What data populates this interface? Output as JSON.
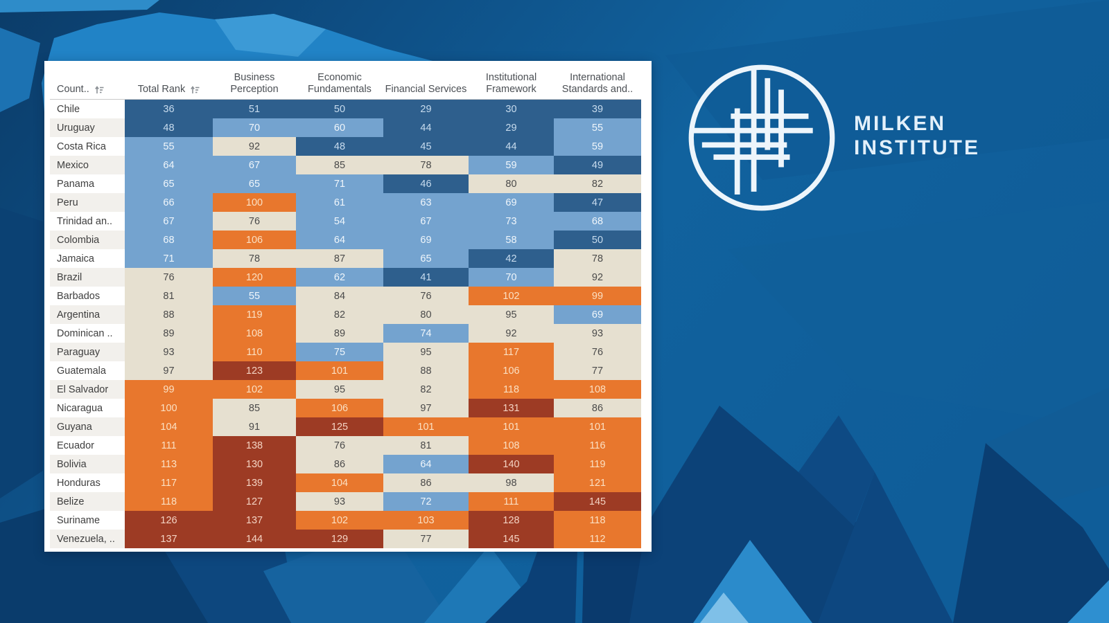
{
  "brand": {
    "line1": "MILKEN",
    "line2": "INSTITUTE"
  },
  "colors": {
    "brand_background": "#0e5390",
    "panel_background": "#ffffff",
    "logo_white": "#edf5fb"
  },
  "tones": {
    "dark-blue": {
      "bg": "#2e5f8d",
      "text": "#c8dcee"
    },
    "light-blue": {
      "bg": "#74a3cf",
      "text": "#f0f6fb"
    },
    "beige": {
      "bg": "#e6e0d0",
      "text": "#4a4a4a"
    },
    "orange": {
      "bg": "#e8772d",
      "text": "#fbe0c3"
    },
    "dark-red": {
      "bg": "#9d3b24",
      "text": "#f4d3c3"
    }
  },
  "table": {
    "columns": [
      {
        "label": "Count..",
        "sort_icon": true
      },
      {
        "label": "Total Rank",
        "sort_icon": true
      },
      {
        "label": "Business Perception",
        "sort_icon": false
      },
      {
        "label": "Economic Fundamentals",
        "sort_icon": false
      },
      {
        "label": "Financial Services",
        "sort_icon": false
      },
      {
        "label": "Institutional Framework",
        "sort_icon": false
      },
      {
        "label": "International Standards and..",
        "sort_icon": false
      }
    ],
    "rows": [
      {
        "country": "Chile",
        "cells": [
          {
            "value": 36,
            "tone": "dark-blue"
          },
          {
            "value": 51,
            "tone": "dark-blue"
          },
          {
            "value": 50,
            "tone": "dark-blue"
          },
          {
            "value": 29,
            "tone": "dark-blue"
          },
          {
            "value": 30,
            "tone": "dark-blue"
          },
          {
            "value": 39,
            "tone": "dark-blue"
          }
        ]
      },
      {
        "country": "Uruguay",
        "cells": [
          {
            "value": 48,
            "tone": "dark-blue"
          },
          {
            "value": 70,
            "tone": "light-blue"
          },
          {
            "value": 60,
            "tone": "light-blue"
          },
          {
            "value": 44,
            "tone": "dark-blue"
          },
          {
            "value": 29,
            "tone": "dark-blue"
          },
          {
            "value": 55,
            "tone": "light-blue"
          }
        ]
      },
      {
        "country": "Costa Rica",
        "cells": [
          {
            "value": 55,
            "tone": "light-blue"
          },
          {
            "value": 92,
            "tone": "beige"
          },
          {
            "value": 48,
            "tone": "dark-blue"
          },
          {
            "value": 45,
            "tone": "dark-blue"
          },
          {
            "value": 44,
            "tone": "dark-blue"
          },
          {
            "value": 59,
            "tone": "light-blue"
          }
        ]
      },
      {
        "country": "Mexico",
        "cells": [
          {
            "value": 64,
            "tone": "light-blue"
          },
          {
            "value": 67,
            "tone": "light-blue"
          },
          {
            "value": 85,
            "tone": "beige"
          },
          {
            "value": 78,
            "tone": "beige"
          },
          {
            "value": 59,
            "tone": "light-blue"
          },
          {
            "value": 49,
            "tone": "dark-blue"
          }
        ]
      },
      {
        "country": "Panama",
        "cells": [
          {
            "value": 65,
            "tone": "light-blue"
          },
          {
            "value": 65,
            "tone": "light-blue"
          },
          {
            "value": 71,
            "tone": "light-blue"
          },
          {
            "value": 46,
            "tone": "dark-blue"
          },
          {
            "value": 80,
            "tone": "beige"
          },
          {
            "value": 82,
            "tone": "beige"
          }
        ]
      },
      {
        "country": "Peru",
        "cells": [
          {
            "value": 66,
            "tone": "light-blue"
          },
          {
            "value": 100,
            "tone": "orange"
          },
          {
            "value": 61,
            "tone": "light-blue"
          },
          {
            "value": 63,
            "tone": "light-blue"
          },
          {
            "value": 69,
            "tone": "light-blue"
          },
          {
            "value": 47,
            "tone": "dark-blue"
          }
        ]
      },
      {
        "country": "Trinidad an..",
        "cells": [
          {
            "value": 67,
            "tone": "light-blue"
          },
          {
            "value": 76,
            "tone": "beige"
          },
          {
            "value": 54,
            "tone": "light-blue"
          },
          {
            "value": 67,
            "tone": "light-blue"
          },
          {
            "value": 73,
            "tone": "light-blue"
          },
          {
            "value": 68,
            "tone": "light-blue"
          }
        ]
      },
      {
        "country": "Colombia",
        "cells": [
          {
            "value": 68,
            "tone": "light-blue"
          },
          {
            "value": 106,
            "tone": "orange"
          },
          {
            "value": 64,
            "tone": "light-blue"
          },
          {
            "value": 69,
            "tone": "light-blue"
          },
          {
            "value": 58,
            "tone": "light-blue"
          },
          {
            "value": 50,
            "tone": "dark-blue"
          }
        ]
      },
      {
        "country": "Jamaica",
        "cells": [
          {
            "value": 71,
            "tone": "light-blue"
          },
          {
            "value": 78,
            "tone": "beige"
          },
          {
            "value": 87,
            "tone": "beige"
          },
          {
            "value": 65,
            "tone": "light-blue"
          },
          {
            "value": 42,
            "tone": "dark-blue"
          },
          {
            "value": 78,
            "tone": "beige"
          }
        ]
      },
      {
        "country": "Brazil",
        "cells": [
          {
            "value": 76,
            "tone": "beige"
          },
          {
            "value": 120,
            "tone": "orange"
          },
          {
            "value": 62,
            "tone": "light-blue"
          },
          {
            "value": 41,
            "tone": "dark-blue"
          },
          {
            "value": 70,
            "tone": "light-blue"
          },
          {
            "value": 92,
            "tone": "beige"
          }
        ]
      },
      {
        "country": "Barbados",
        "cells": [
          {
            "value": 81,
            "tone": "beige"
          },
          {
            "value": 55,
            "tone": "light-blue"
          },
          {
            "value": 84,
            "tone": "beige"
          },
          {
            "value": 76,
            "tone": "beige"
          },
          {
            "value": 102,
            "tone": "orange"
          },
          {
            "value": 99,
            "tone": "orange"
          }
        ]
      },
      {
        "country": "Argentina",
        "cells": [
          {
            "value": 88,
            "tone": "beige"
          },
          {
            "value": 119,
            "tone": "orange"
          },
          {
            "value": 82,
            "tone": "beige"
          },
          {
            "value": 80,
            "tone": "beige"
          },
          {
            "value": 95,
            "tone": "beige"
          },
          {
            "value": 69,
            "tone": "light-blue"
          }
        ]
      },
      {
        "country": "Dominican ..",
        "cells": [
          {
            "value": 89,
            "tone": "beige"
          },
          {
            "value": 108,
            "tone": "orange"
          },
          {
            "value": 89,
            "tone": "beige"
          },
          {
            "value": 74,
            "tone": "light-blue"
          },
          {
            "value": 92,
            "tone": "beige"
          },
          {
            "value": 93,
            "tone": "beige"
          }
        ]
      },
      {
        "country": "Paraguay",
        "cells": [
          {
            "value": 93,
            "tone": "beige"
          },
          {
            "value": 110,
            "tone": "orange"
          },
          {
            "value": 75,
            "tone": "light-blue"
          },
          {
            "value": 95,
            "tone": "beige"
          },
          {
            "value": 117,
            "tone": "orange"
          },
          {
            "value": 76,
            "tone": "beige"
          }
        ]
      },
      {
        "country": "Guatemala",
        "cells": [
          {
            "value": 97,
            "tone": "beige"
          },
          {
            "value": 123,
            "tone": "dark-red"
          },
          {
            "value": 101,
            "tone": "orange"
          },
          {
            "value": 88,
            "tone": "beige"
          },
          {
            "value": 106,
            "tone": "orange"
          },
          {
            "value": 77,
            "tone": "beige"
          }
        ]
      },
      {
        "country": "El Salvador",
        "cells": [
          {
            "value": 99,
            "tone": "orange"
          },
          {
            "value": 102,
            "tone": "orange"
          },
          {
            "value": 95,
            "tone": "beige"
          },
          {
            "value": 82,
            "tone": "beige"
          },
          {
            "value": 118,
            "tone": "orange"
          },
          {
            "value": 108,
            "tone": "orange"
          }
        ]
      },
      {
        "country": "Nicaragua",
        "cells": [
          {
            "value": 100,
            "tone": "orange"
          },
          {
            "value": 85,
            "tone": "beige"
          },
          {
            "value": 106,
            "tone": "orange"
          },
          {
            "value": 97,
            "tone": "beige"
          },
          {
            "value": 131,
            "tone": "dark-red"
          },
          {
            "value": 86,
            "tone": "beige"
          }
        ]
      },
      {
        "country": "Guyana",
        "cells": [
          {
            "value": 104,
            "tone": "orange"
          },
          {
            "value": 91,
            "tone": "beige"
          },
          {
            "value": 125,
            "tone": "dark-red"
          },
          {
            "value": 101,
            "tone": "orange"
          },
          {
            "value": 101,
            "tone": "orange"
          },
          {
            "value": 101,
            "tone": "orange"
          }
        ]
      },
      {
        "country": "Ecuador",
        "cells": [
          {
            "value": 111,
            "tone": "orange"
          },
          {
            "value": 138,
            "tone": "dark-red"
          },
          {
            "value": 76,
            "tone": "beige"
          },
          {
            "value": 81,
            "tone": "beige"
          },
          {
            "value": 108,
            "tone": "orange"
          },
          {
            "value": 116,
            "tone": "orange"
          }
        ]
      },
      {
        "country": "Bolivia",
        "cells": [
          {
            "value": 113,
            "tone": "orange"
          },
          {
            "value": 130,
            "tone": "dark-red"
          },
          {
            "value": 86,
            "tone": "beige"
          },
          {
            "value": 64,
            "tone": "light-blue"
          },
          {
            "value": 140,
            "tone": "dark-red"
          },
          {
            "value": 119,
            "tone": "orange"
          }
        ]
      },
      {
        "country": "Honduras",
        "cells": [
          {
            "value": 117,
            "tone": "orange"
          },
          {
            "value": 139,
            "tone": "dark-red"
          },
          {
            "value": 104,
            "tone": "orange"
          },
          {
            "value": 86,
            "tone": "beige"
          },
          {
            "value": 98,
            "tone": "beige"
          },
          {
            "value": 121,
            "tone": "orange"
          }
        ]
      },
      {
        "country": "Belize",
        "cells": [
          {
            "value": 118,
            "tone": "orange"
          },
          {
            "value": 127,
            "tone": "dark-red"
          },
          {
            "value": 93,
            "tone": "beige"
          },
          {
            "value": 72,
            "tone": "light-blue"
          },
          {
            "value": 111,
            "tone": "orange"
          },
          {
            "value": 145,
            "tone": "dark-red"
          }
        ]
      },
      {
        "country": "Suriname",
        "cells": [
          {
            "value": 126,
            "tone": "dark-red"
          },
          {
            "value": 137,
            "tone": "dark-red"
          },
          {
            "value": 102,
            "tone": "orange"
          },
          {
            "value": 103,
            "tone": "orange"
          },
          {
            "value": 128,
            "tone": "dark-red"
          },
          {
            "value": 118,
            "tone": "orange"
          }
        ]
      },
      {
        "country": "Venezuela, ..",
        "cells": [
          {
            "value": 137,
            "tone": "dark-red"
          },
          {
            "value": 144,
            "tone": "dark-red"
          },
          {
            "value": 129,
            "tone": "dark-red"
          },
          {
            "value": 77,
            "tone": "beige"
          },
          {
            "value": 145,
            "tone": "dark-red"
          },
          {
            "value": 112,
            "tone": "orange"
          }
        ]
      }
    ]
  },
  "chart_data": {
    "type": "table",
    "title": "",
    "categories": [
      "Chile",
      "Uruguay",
      "Costa Rica",
      "Mexico",
      "Panama",
      "Peru",
      "Trinidad an..",
      "Colombia",
      "Jamaica",
      "Brazil",
      "Barbados",
      "Argentina",
      "Dominican ..",
      "Paraguay",
      "Guatemala",
      "El Salvador",
      "Nicaragua",
      "Guyana",
      "Ecuador",
      "Bolivia",
      "Honduras",
      "Belize",
      "Suriname",
      "Venezuela, .."
    ],
    "series": [
      {
        "name": "Total Rank",
        "values": [
          36,
          48,
          55,
          64,
          65,
          66,
          67,
          68,
          71,
          76,
          81,
          88,
          89,
          93,
          97,
          99,
          100,
          104,
          111,
          113,
          117,
          118,
          126,
          137
        ]
      },
      {
        "name": "Business Perception",
        "values": [
          51,
          70,
          92,
          67,
          65,
          100,
          76,
          106,
          78,
          120,
          55,
          119,
          108,
          110,
          123,
          102,
          85,
          91,
          138,
          130,
          139,
          127,
          137,
          144
        ]
      },
      {
        "name": "Economic Fundamentals",
        "values": [
          50,
          60,
          48,
          85,
          71,
          61,
          54,
          64,
          87,
          62,
          84,
          82,
          89,
          75,
          101,
          95,
          106,
          125,
          76,
          86,
          104,
          93,
          102,
          129
        ]
      },
      {
        "name": "Financial Services",
        "values": [
          29,
          44,
          45,
          78,
          46,
          63,
          67,
          69,
          65,
          41,
          76,
          80,
          74,
          95,
          88,
          82,
          97,
          101,
          81,
          64,
          86,
          72,
          103,
          77
        ]
      },
      {
        "name": "Institutional Framework",
        "values": [
          30,
          29,
          44,
          59,
          80,
          69,
          73,
          58,
          42,
          70,
          102,
          95,
          92,
          117,
          106,
          118,
          131,
          101,
          108,
          140,
          98,
          111,
          128,
          145
        ]
      },
      {
        "name": "International Standards and..",
        "values": [
          39,
          55,
          59,
          49,
          82,
          47,
          68,
          50,
          78,
          92,
          99,
          69,
          93,
          76,
          77,
          108,
          86,
          101,
          116,
          119,
          121,
          145,
          118,
          112
        ]
      }
    ],
    "layout_hints": "heatmap-colored ranking table; blue = better rank, orange/dark red = worse rank; sorted ascending by Total Rank"
  }
}
